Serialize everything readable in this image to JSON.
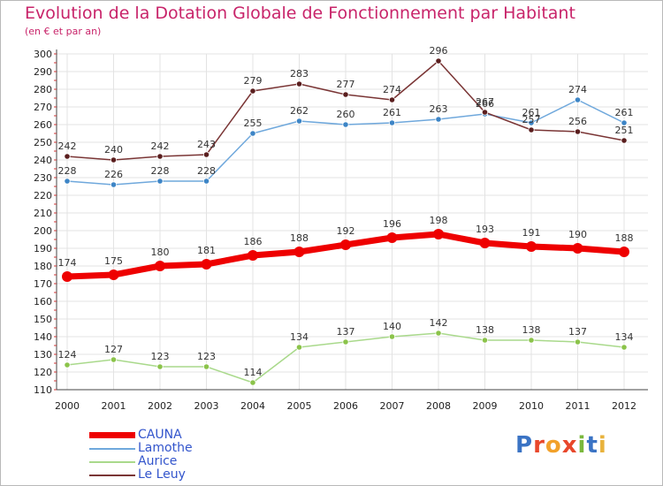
{
  "title": "Evolution de la Dotation Globale de Fonctionnement par Habitant",
  "subtitle": "(en € et par an)",
  "logo": {
    "text": "Proxiti",
    "colors": [
      "#3a73c4",
      "#e8472b",
      "#f2a12a",
      "#e8472b",
      "#7ab83c",
      "#3a73c4",
      "#e8b23c"
    ]
  },
  "chart_data": {
    "type": "line",
    "title": "Evolution de la Dotation Globale de Fonctionnement par Habitant",
    "subtitle": "(en € et par an)",
    "xlabel": "",
    "ylabel": "",
    "categories": [
      "2000",
      "2001",
      "2002",
      "2003",
      "2004",
      "2005",
      "2006",
      "2007",
      "2008",
      "2009",
      "2010",
      "2011",
      "2012"
    ],
    "ylim": [
      110,
      300
    ],
    "yticks": [
      110,
      120,
      130,
      140,
      150,
      160,
      170,
      180,
      190,
      200,
      210,
      220,
      230,
      240,
      250,
      260,
      270,
      280,
      290,
      300
    ],
    "grid": true,
    "legend_position": "bottom-left",
    "series": [
      {
        "name": "CAUNA",
        "color": "#ee0000",
        "emphasis": true,
        "values": [
          174,
          175,
          180,
          181,
          186,
          188,
          192,
          196,
          198,
          193,
          191,
          190,
          188
        ]
      },
      {
        "name": "Lamothe",
        "color": "#6fa8dc",
        "marker": "#3d85c6",
        "emphasis": false,
        "values": [
          228,
          226,
          228,
          228,
          255,
          262,
          260,
          261,
          263,
          266,
          261,
          274,
          261
        ]
      },
      {
        "name": "Aurice",
        "color": "#a9d98b",
        "marker": "#8bc34a",
        "emphasis": false,
        "values": [
          124,
          127,
          123,
          123,
          114,
          134,
          137,
          140,
          142,
          138,
          138,
          137,
          134
        ]
      },
      {
        "name": "Le Leuy",
        "color": "#7a3535",
        "marker": "#5a1e1e",
        "emphasis": false,
        "values": [
          242,
          240,
          242,
          243,
          279,
          283,
          277,
          274,
          296,
          267,
          257,
          256,
          251
        ]
      }
    ]
  }
}
